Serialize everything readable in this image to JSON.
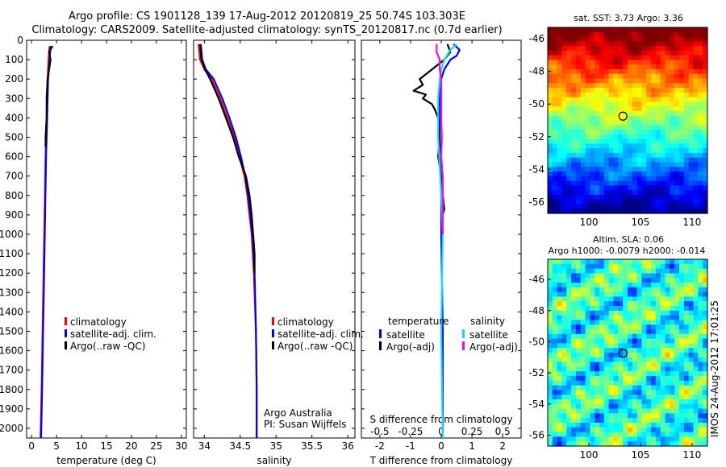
{
  "title_line1": "Argo profile: CS 1901128_139 17-Aug-2012 20120819_25 50.74S 103.303E",
  "title_line2": "Climatology: CARS2009. Satellite-adjusted climatology: synTS_20120817.nc (0.7d earlier)",
  "colors": {
    "climatology": "#ff0000",
    "satellite": "#0000ff",
    "argo": "#000000",
    "cyan": "#00e5e5",
    "magenta": "#ff00ff"
  },
  "depth_axis": {
    "ylim": [
      0,
      2050
    ],
    "ticks": [
      0,
      100,
      200,
      300,
      400,
      500,
      600,
      700,
      800,
      900,
      1000,
      1100,
      1200,
      1300,
      1400,
      1500,
      1600,
      1700,
      1800,
      1900,
      2000
    ]
  },
  "legend_labels": [
    "climatology",
    "satellite-adj. clim.",
    "Argo(..raw -QC)"
  ],
  "credit": {
    "line1": "Argo Australia",
    "line2": "PI: Susan Wijffels"
  },
  "diff_legend": {
    "temp_header": "temperature",
    "sal_header": "salinity",
    "satellite": "satellite",
    "argo": "Argo(-adj)"
  },
  "chart_data": [
    {
      "type": "line",
      "xlabel": "temperature (deg C)",
      "ylabel": "",
      "xlim": [
        -1,
        31
      ],
      "ylim": [
        0,
        2050
      ],
      "xticks": [
        0,
        5,
        10,
        15,
        20,
        25,
        30
      ],
      "series": [
        {
          "name": "climatology",
          "color": "#ff0000",
          "depth": [
            30,
            100,
            200,
            400,
            600,
            900,
            1200,
            1500,
            1800,
            2050
          ],
          "values": [
            3.6,
            3.4,
            3.2,
            3.0,
            2.8,
            2.6,
            2.4,
            2.2,
            2.0,
            1.8
          ]
        },
        {
          "name": "satellite-adj. clim.",
          "color": "#0000ff",
          "depth": [
            30,
            100,
            200,
            400,
            600,
            900,
            1200,
            1500,
            1800,
            2050
          ],
          "values": [
            3.8,
            3.6,
            3.3,
            3.1,
            2.9,
            2.7,
            2.5,
            2.3,
            2.1,
            1.9
          ]
        },
        {
          "name": "Argo(..raw -QC)",
          "color": "#000000",
          "depth": [
            30,
            60,
            100,
            200,
            300,
            400,
            500,
            550
          ],
          "values": [
            4.2,
            3.5,
            3.8,
            3.2,
            3.0,
            3.0,
            2.8,
            2.8
          ]
        }
      ]
    },
    {
      "type": "line",
      "xlabel": "salinity",
      "ylabel": "",
      "xlim": [
        33.85,
        36.1
      ],
      "ylim": [
        0,
        2050
      ],
      "xticks": [
        34,
        34.5,
        35,
        35.5,
        36
      ],
      "series": [
        {
          "name": "climatology",
          "color": "#ff0000",
          "depth": [
            20,
            100,
            150,
            200,
            300,
            400,
            500,
            600,
            700,
            800,
            900,
            1000,
            1200,
            1500,
            1800,
            2050
          ],
          "values": [
            33.92,
            33.94,
            34.0,
            34.1,
            34.22,
            34.32,
            34.42,
            34.49,
            34.56,
            34.6,
            34.63,
            34.66,
            34.69,
            34.72,
            34.73,
            34.73
          ]
        },
        {
          "name": "satellite-adj. clim.",
          "color": "#0000ff",
          "depth": [
            20,
            100,
            150,
            200,
            300,
            400,
            500,
            600,
            700,
            800,
            900,
            1000,
            1200,
            1500,
            1800,
            2050
          ],
          "values": [
            33.95,
            33.97,
            34.02,
            34.13,
            34.25,
            34.35,
            34.44,
            34.51,
            34.57,
            34.61,
            34.64,
            34.67,
            34.7,
            34.72,
            34.73,
            34.73
          ]
        },
        {
          "name": "Argo(..raw -QC)",
          "color": "#000000",
          "depth": [
            20,
            100,
            150,
            200,
            300,
            400,
            500,
            600,
            700,
            800,
            900,
            1000,
            1100,
            1200
          ],
          "values": [
            33.94,
            33.96,
            34.01,
            34.08,
            34.2,
            34.3,
            34.4,
            34.48,
            34.58,
            34.63,
            34.66,
            34.68,
            34.7,
            34.7
          ]
        }
      ]
    },
    {
      "type": "line",
      "xlabel": "T difference from climatology",
      "x2label": "S difference from climatology",
      "xlim": [
        -2.6,
        2.6
      ],
      "ylim": [
        0,
        2050
      ],
      "xticks": [
        -2,
        -1,
        0,
        1,
        2
      ],
      "x2ticks": [
        {
          "value": -2,
          "label": "-0.5"
        },
        {
          "value": -1,
          "label": "-0.25"
        },
        {
          "value": 0,
          "label": "0"
        },
        {
          "value": 1,
          "label": "0.25"
        },
        {
          "value": 2,
          "label": "0.5"
        }
      ],
      "series": [
        {
          "name": "temperature satellite",
          "color": "#0000ff",
          "depth": [
            20,
            50,
            80,
            100,
            150,
            200,
            300,
            500,
            800,
            1000,
            1500,
            2050
          ],
          "values": [
            0.4,
            0.6,
            0.5,
            0.3,
            0.1,
            0.0,
            -0.05,
            -0.05,
            0.0,
            0.0,
            0.05,
            0.05
          ]
        },
        {
          "name": "temperature Argo(-adj)",
          "color": "#000000",
          "depth": [
            20,
            60,
            100,
            150,
            200,
            230,
            260,
            280,
            300,
            330,
            360,
            400,
            500,
            600,
            700,
            800,
            870,
            900
          ],
          "values": [
            0.2,
            0.3,
            0.1,
            -0.3,
            -0.7,
            -0.6,
            -0.9,
            -0.5,
            -0.6,
            -0.3,
            -0.2,
            -0.1,
            -0.05,
            -0.1,
            0.0,
            0.05,
            0.1,
            0.05
          ]
        },
        {
          "name": "salinity satellite",
          "color": "#00e5e5",
          "depth": [
            20,
            50,
            100,
            150,
            200,
            300,
            500,
            800,
            1000,
            1500,
            2050
          ],
          "values": [
            0.5,
            0.3,
            0.1,
            0.0,
            -0.05,
            -0.1,
            -0.1,
            0.0,
            0.05,
            0.0,
            0.05
          ]
        },
        {
          "name": "salinity Argo(-adj)",
          "color": "#ff00ff",
          "depth": [
            20,
            60,
            100,
            150,
            200,
            300,
            400,
            500,
            600,
            700,
            800,
            900,
            1000
          ],
          "values": [
            -0.15,
            -0.15,
            -0.05,
            -0.05,
            0.0,
            0.0,
            0.0,
            0.02,
            0.0,
            0.05,
            0.05,
            0.05,
            0.05
          ]
        }
      ]
    },
    {
      "type": "heatmap",
      "title": "sat. SST: 3.73 Argo: 3.36",
      "xlim": [
        96,
        111.5
      ],
      "ylim": [
        -56.7,
        -45.3
      ],
      "xticks": [
        100,
        105,
        110
      ],
      "yticks": [
        -46,
        -48,
        -50,
        -52,
        -54,
        -56
      ],
      "marker": {
        "lon": 103.3,
        "lat": -50.74
      }
    },
    {
      "type": "heatmap",
      "title_line1": "Altim. SLA: 0.06",
      "title_line2": "Argo h1000: -0.0079 h2000: -0.014",
      "xlim": [
        96,
        111.5
      ],
      "ylim": [
        -56.7,
        -44.7
      ],
      "xticks": [
        100,
        105,
        110
      ],
      "yticks": [
        -46,
        -48,
        -50,
        -52,
        -54,
        -56
      ],
      "marker": {
        "lon": 103.3,
        "lat": -50.74
      }
    }
  ],
  "stamp": "IMOS 24-Aug-2012 17:01:25"
}
